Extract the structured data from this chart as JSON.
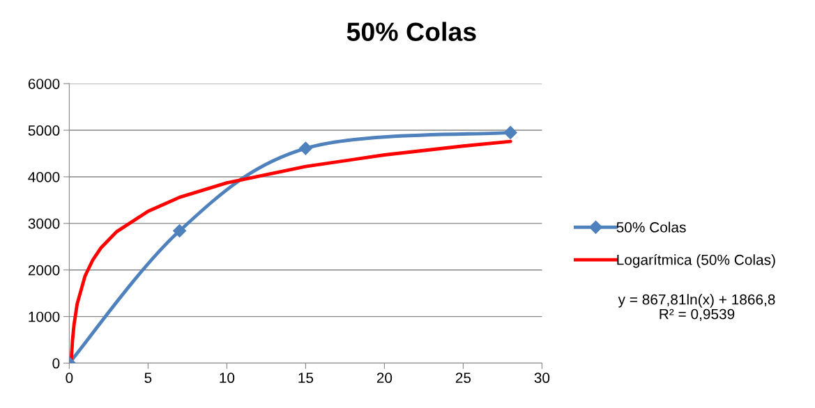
{
  "chart_data": {
    "type": "line",
    "title": "50% Colas",
    "xlim": [
      0,
      30
    ],
    "xticks": [
      0,
      5,
      10,
      15,
      20,
      25,
      30
    ],
    "ylim": [
      0,
      6000
    ],
    "yticks": [
      0,
      1000,
      2000,
      3000,
      4000,
      5000,
      6000
    ],
    "grid": "y",
    "legend": "right",
    "series": [
      {
        "name": "50% Colas",
        "color": "#4f81bd",
        "marker": "diamond",
        "x": [
          0,
          7,
          15,
          28
        ],
        "values": [
          0,
          2840,
          4610,
          4950
        ]
      },
      {
        "name": "Logarítmica (50% Colas)",
        "color": "#ff0000",
        "marker": "none",
        "x": [
          0.12,
          0.2,
          0.3,
          0.5,
          1,
          1.5,
          2,
          3,
          5,
          7,
          10,
          15,
          20,
          25,
          28
        ],
        "values": [
          30,
          470,
          820,
          1270,
          1870,
          2220,
          2470,
          2820,
          3260,
          3560,
          3870,
          4220,
          4470,
          4660,
          4760
        ]
      }
    ],
    "annotations": [
      "y = 867,81ln(x) + 1866,8\nR² = 0,9539"
    ]
  }
}
